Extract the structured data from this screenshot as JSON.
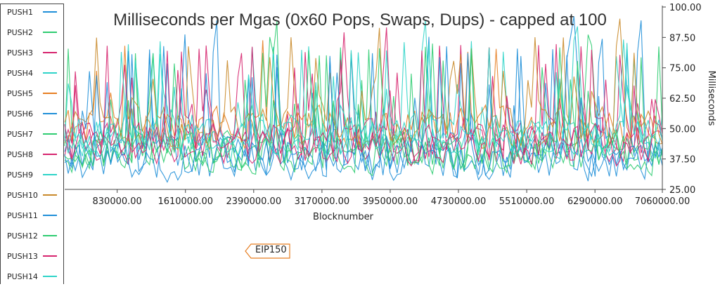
{
  "chart_data": {
    "type": "line",
    "title": "Milliseconds per Mgas (0x60 Pops, Swaps, Dups) - capped at 100",
    "xlabel": "Blocknumber",
    "ylabel": "Milliseconds",
    "xlim": [
      230000,
      7060000
    ],
    "ylim": [
      25,
      100
    ],
    "x_ticks": [
      "830000.00",
      "1610000.00",
      "2390000.00",
      "3170000.00",
      "3950000.00",
      "4730000.00",
      "5510000.00",
      "6290000.00",
      "7060000.00"
    ],
    "y_ticks": [
      "100.00",
      "87.50",
      "75.00",
      "62.50",
      "50.00",
      "37.50",
      "25.00"
    ],
    "grid": false,
    "legend_position": "left",
    "series": [
      {
        "name": "PUSH1",
        "color": "#1f8fd8"
      },
      {
        "name": "PUSH2",
        "color": "#2ecc71"
      },
      {
        "name": "PUSH3",
        "color": "#d6246e"
      },
      {
        "name": "PUSH4",
        "color": "#2ed4c8"
      },
      {
        "name": "PUSH5",
        "color": "#e67e22"
      },
      {
        "name": "PUSH6",
        "color": "#1f8fd8"
      },
      {
        "name": "PUSH7",
        "color": "#2ecc71"
      },
      {
        "name": "PUSH8",
        "color": "#d6246e"
      },
      {
        "name": "PUSH9",
        "color": "#2ed4c8"
      },
      {
        "name": "PUSH10",
        "color": "#c9892a"
      },
      {
        "name": "PUSH11",
        "color": "#1f8fd8"
      },
      {
        "name": "PUSH12",
        "color": "#2ecc71"
      },
      {
        "name": "PUSH13",
        "color": "#d6246e"
      },
      {
        "name": "PUSH14",
        "color": "#2ed4c8"
      }
    ],
    "annotations": [
      {
        "label": "EIP150",
        "color": "#e67e22"
      }
    ]
  }
}
